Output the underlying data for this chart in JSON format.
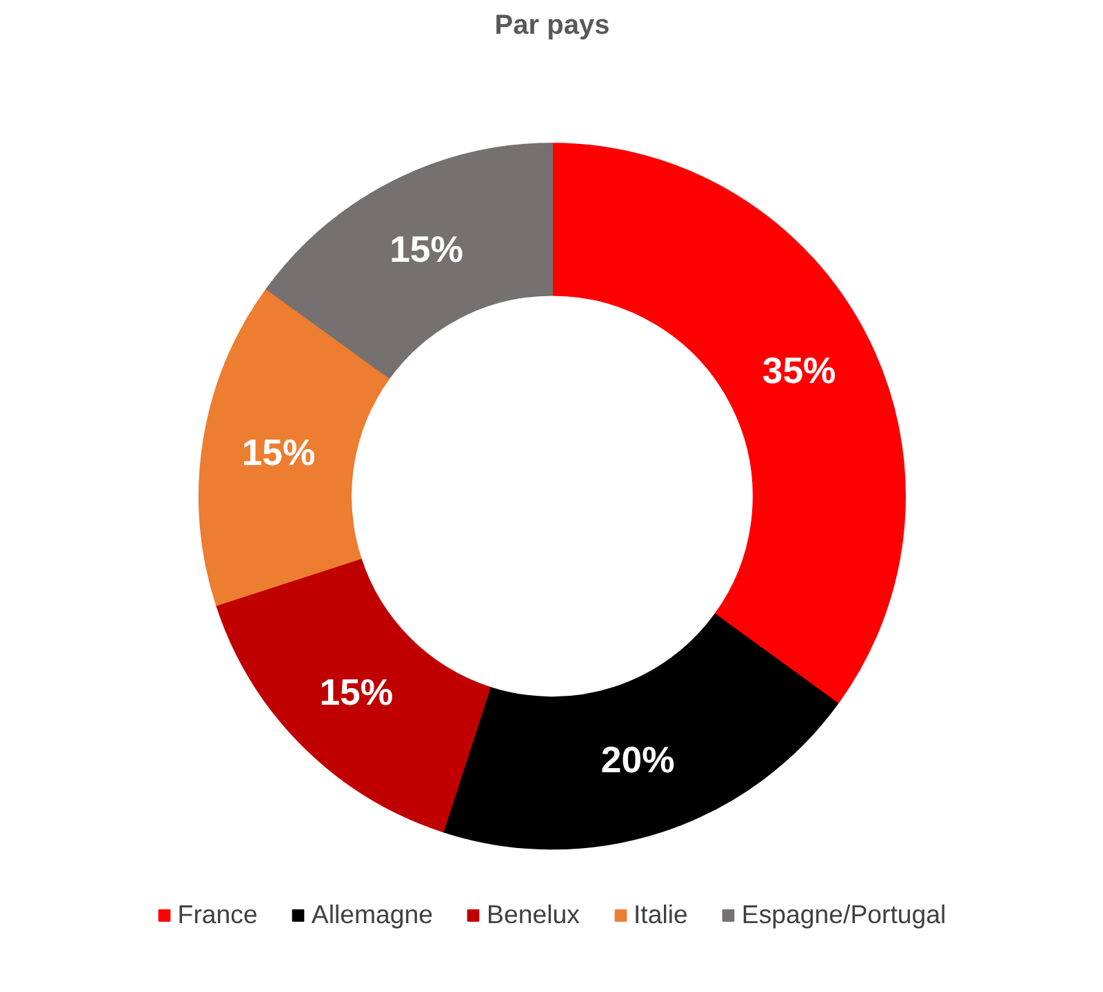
{
  "chart_data": {
    "type": "donut",
    "title": "Par pays",
    "categories": [
      "France",
      "Allemagne",
      "Benelux",
      "Italie",
      "Espagne/Portugal"
    ],
    "values": [
      35,
      20,
      15,
      15,
      15
    ],
    "colors": [
      "#ff0000",
      "#000000",
      "#c00000",
      "#ed7d31",
      "#767171"
    ],
    "value_labels": [
      "35%",
      "20%",
      "15%",
      "15%",
      "15%"
    ],
    "legend": "bottom"
  }
}
